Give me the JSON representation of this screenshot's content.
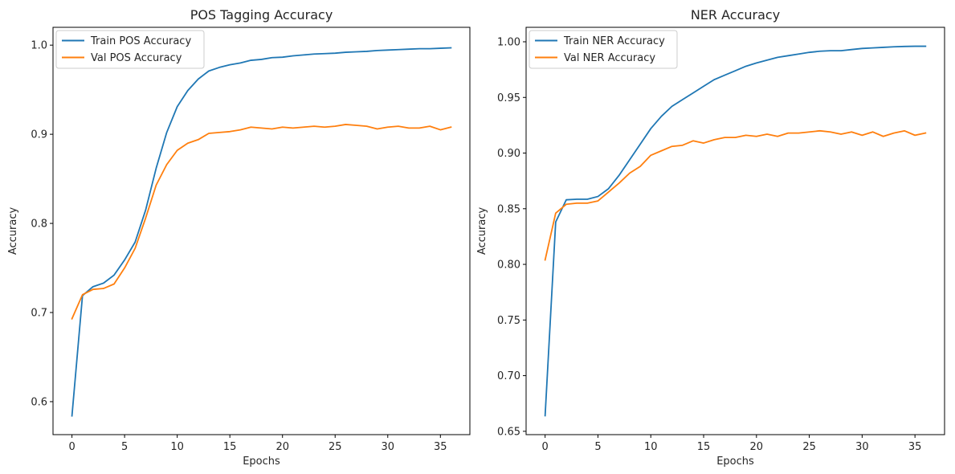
{
  "chart_data": [
    {
      "type": "line",
      "title": "POS Tagging Accuracy",
      "xlabel": "Epochs",
      "ylabel": "Accuracy",
      "xlim": [
        -1.8,
        37.8
      ],
      "ylim": [
        0.563,
        1.02
      ],
      "xticks": [
        0,
        5,
        10,
        15,
        20,
        25,
        30,
        35
      ],
      "yticks": [
        0.6,
        0.7,
        0.8,
        0.9,
        1.0
      ],
      "ytick_labels": [
        "0.6",
        "0.7",
        "0.8",
        "0.9",
        "1.0"
      ],
      "legend_position": "top-left",
      "x": [
        0,
        1,
        2,
        3,
        4,
        5,
        6,
        7,
        8,
        9,
        10,
        11,
        12,
        13,
        14,
        15,
        16,
        17,
        18,
        19,
        20,
        21,
        22,
        23,
        24,
        25,
        26,
        27,
        28,
        29,
        30,
        31,
        32,
        33,
        34,
        35,
        36
      ],
      "series": [
        {
          "name": "Train POS Accuracy",
          "color": "#1f77b4",
          "values": [
            0.584,
            0.719,
            0.729,
            0.733,
            0.742,
            0.759,
            0.779,
            0.815,
            0.862,
            0.902,
            0.931,
            0.949,
            0.962,
            0.971,
            0.975,
            0.978,
            0.98,
            0.983,
            0.984,
            0.986,
            0.9865,
            0.988,
            0.989,
            0.99,
            0.9905,
            0.991,
            0.992,
            0.9925,
            0.993,
            0.994,
            0.9945,
            0.995,
            0.9955,
            0.996,
            0.996,
            0.9965,
            0.997
          ]
        },
        {
          "name": "Val POS Accuracy",
          "color": "#ff7f0e",
          "values": [
            0.693,
            0.72,
            0.726,
            0.727,
            0.732,
            0.75,
            0.772,
            0.806,
            0.843,
            0.866,
            0.882,
            0.89,
            0.894,
            0.901,
            0.902,
            0.903,
            0.905,
            0.908,
            0.907,
            0.906,
            0.908,
            0.907,
            0.908,
            0.909,
            0.908,
            0.909,
            0.911,
            0.91,
            0.909,
            0.906,
            0.908,
            0.909,
            0.907,
            0.907,
            0.909,
            0.905,
            0.908
          ]
        }
      ]
    },
    {
      "type": "line",
      "title": "NER Accuracy",
      "xlabel": "Epochs",
      "ylabel": "Accuracy",
      "xlim": [
        -1.8,
        37.8
      ],
      "ylim": [
        0.647,
        1.013
      ],
      "xticks": [
        0,
        5,
        10,
        15,
        20,
        25,
        30,
        35
      ],
      "yticks": [
        0.65,
        0.7,
        0.75,
        0.8,
        0.85,
        0.9,
        0.95,
        1.0
      ],
      "ytick_labels": [
        "0.65",
        "0.70",
        "0.75",
        "0.80",
        "0.85",
        "0.90",
        "0.95",
        "1.00"
      ],
      "legend_position": "top-left",
      "x": [
        0,
        1,
        2,
        3,
        4,
        5,
        6,
        7,
        8,
        9,
        10,
        11,
        12,
        13,
        14,
        15,
        16,
        17,
        18,
        19,
        20,
        21,
        22,
        23,
        24,
        25,
        26,
        27,
        28,
        29,
        30,
        31,
        32,
        33,
        34,
        35,
        36
      ],
      "series": [
        {
          "name": "Train NER Accuracy",
          "color": "#1f77b4",
          "values": [
            0.664,
            0.838,
            0.858,
            0.8585,
            0.8585,
            0.861,
            0.868,
            0.88,
            0.894,
            0.908,
            0.922,
            0.933,
            0.942,
            0.948,
            0.954,
            0.96,
            0.966,
            0.97,
            0.974,
            0.978,
            0.981,
            0.9835,
            0.986,
            0.9875,
            0.989,
            0.9905,
            0.9915,
            0.992,
            0.992,
            0.993,
            0.994,
            0.9945,
            0.995,
            0.9955,
            0.9958,
            0.996,
            0.996
          ]
        },
        {
          "name": "Val NER Accuracy",
          "color": "#ff7f0e",
          "values": [
            0.804,
            0.846,
            0.854,
            0.855,
            0.855,
            0.857,
            0.865,
            0.873,
            0.882,
            0.888,
            0.898,
            0.902,
            0.906,
            0.907,
            0.911,
            0.909,
            0.912,
            0.914,
            0.914,
            0.916,
            0.915,
            0.917,
            0.915,
            0.918,
            0.918,
            0.919,
            0.92,
            0.919,
            0.917,
            0.919,
            0.916,
            0.919,
            0.915,
            0.918,
            0.92,
            0.916,
            0.918
          ]
        }
      ]
    }
  ]
}
